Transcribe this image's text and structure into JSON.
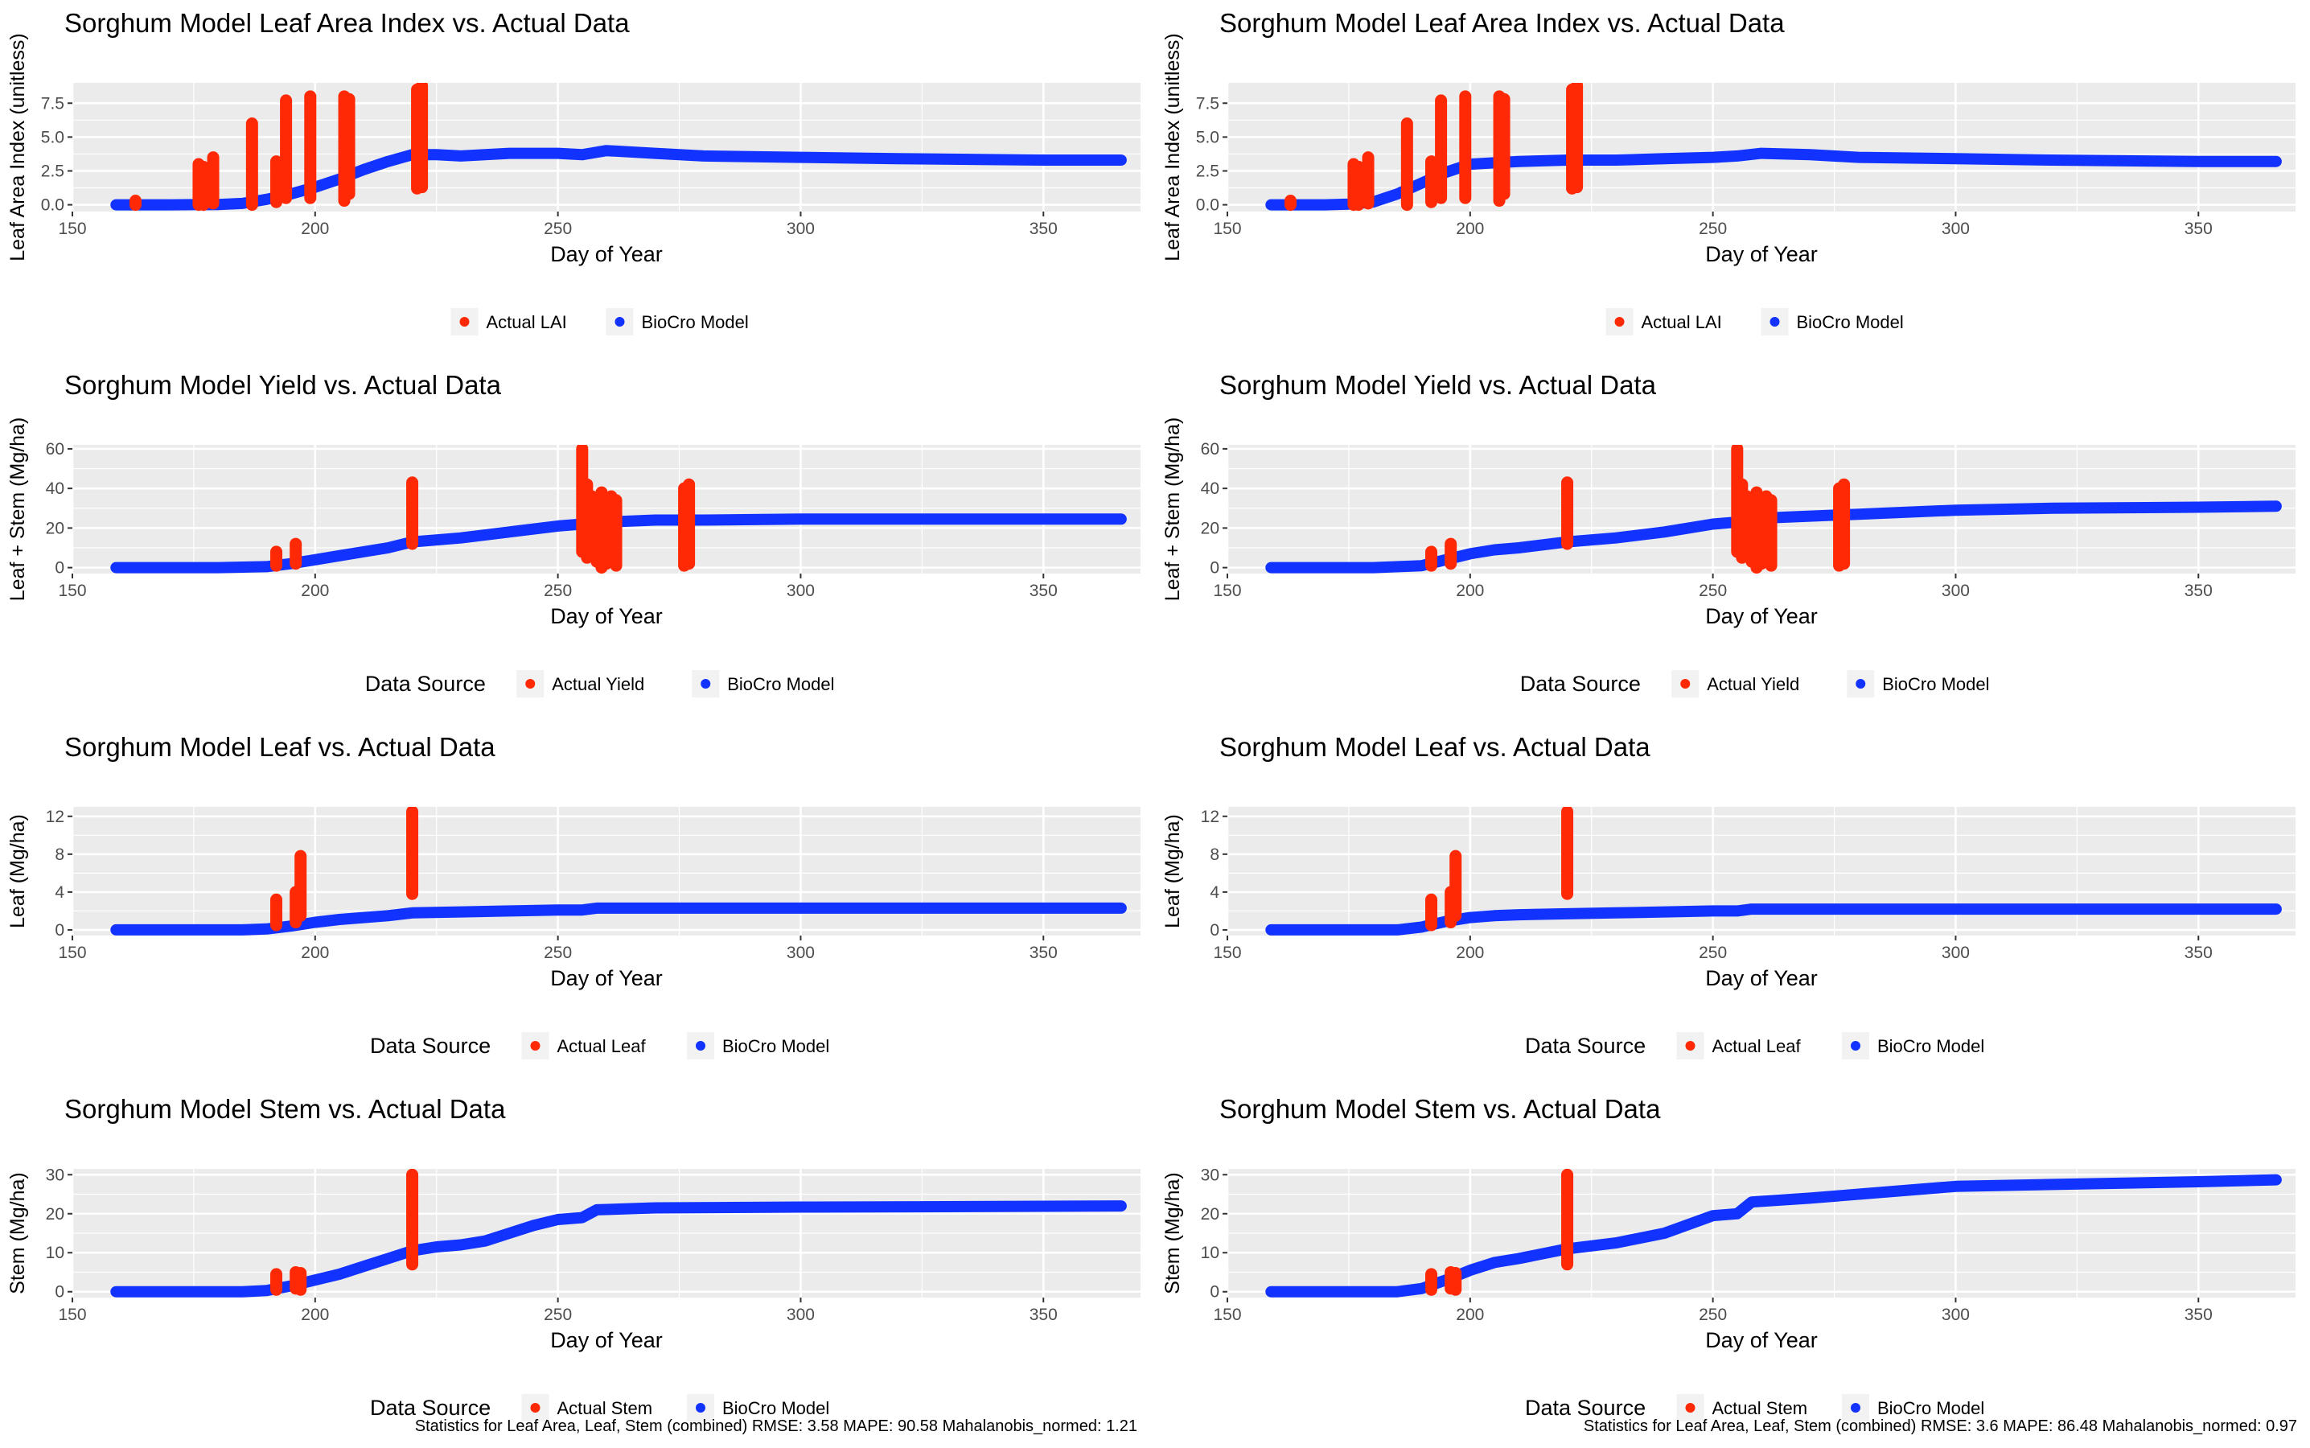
{
  "colors": {
    "actual": "#ff2a05",
    "model": "#1233ff",
    "panel_bg": "#ebebeb",
    "grid": "#ffffff",
    "axis_text": "#4d4d4d"
  },
  "chart_data": [
    {
      "type": "scatter",
      "id": "left-lai",
      "title": "Sorghum Model Leaf Area Index vs. Actual Data",
      "xlabel": "Day of Year",
      "ylabel": "Leaf Area Index (unitless)",
      "xlim": [
        150,
        370
      ],
      "ylim": [
        -0.5,
        9.0
      ],
      "xticks": [
        150,
        200,
        250,
        300,
        350
      ],
      "yticks": [
        0.0,
        2.5,
        5.0,
        7.5
      ],
      "ytick_labels": [
        "0.0",
        "2.5",
        "5.0",
        "7.5"
      ],
      "legend": {
        "position": "bottom",
        "title": "",
        "entries": [
          "Actual LAI",
          "BioCro Model"
        ]
      },
      "model_series": {
        "name": "BioCro Model",
        "x": [
          159,
          170,
          180,
          185,
          190,
          195,
          200,
          205,
          210,
          215,
          220,
          225,
          230,
          240,
          250,
          255,
          260,
          270,
          280,
          300,
          320,
          350,
          366
        ],
        "y": [
          0,
          0,
          0.02,
          0.1,
          0.4,
          0.8,
          1.3,
          1.9,
          2.6,
          3.2,
          3.7,
          3.7,
          3.6,
          3.8,
          3.8,
          3.7,
          4.0,
          3.8,
          3.6,
          3.5,
          3.4,
          3.3,
          3.3
        ]
      },
      "actual_series": {
        "name": "Actual LAI",
        "x": [
          163,
          176,
          177,
          179,
          187,
          192,
          194,
          199,
          206,
          207,
          221,
          222
        ],
        "ymin": [
          0.0,
          0.0,
          0.0,
          0.1,
          0.0,
          0.2,
          0.5,
          0.5,
          0.3,
          0.8,
          1.2,
          1.3
        ],
        "ymax": [
          0.3,
          3.0,
          2.8,
          3.5,
          6.0,
          3.2,
          7.7,
          8.0,
          8.0,
          7.8,
          8.5,
          8.8
        ]
      }
    },
    {
      "type": "scatter",
      "id": "right-lai",
      "title": "Sorghum Model Leaf Area Index vs. Actual Data",
      "xlabel": "Day of Year",
      "ylabel": "Leaf Area Index (unitless)",
      "xlim": [
        150,
        370
      ],
      "ylim": [
        -0.5,
        9.0
      ],
      "xticks": [
        150,
        200,
        250,
        300,
        350
      ],
      "yticks": [
        0.0,
        2.5,
        5.0,
        7.5
      ],
      "ytick_labels": [
        "0.0",
        "2.5",
        "5.0",
        "7.5"
      ],
      "legend": {
        "position": "bottom",
        "title": "",
        "entries": [
          "Actual LAI",
          "BioCro Model"
        ]
      },
      "model_series": {
        "name": "BioCro Model",
        "x": [
          159,
          170,
          175,
          180,
          185,
          190,
          195,
          200,
          205,
          210,
          220,
          230,
          240,
          250,
          255,
          260,
          270,
          280,
          300,
          320,
          350,
          366
        ],
        "y": [
          0,
          0,
          0.05,
          0.2,
          0.8,
          1.6,
          2.4,
          3.0,
          3.1,
          3.2,
          3.3,
          3.3,
          3.4,
          3.5,
          3.6,
          3.8,
          3.7,
          3.5,
          3.4,
          3.3,
          3.2,
          3.2
        ]
      },
      "actual_series": {
        "name": "Actual LAI",
        "x": [
          163,
          176,
          177,
          179,
          187,
          192,
          194,
          199,
          206,
          207,
          221,
          222
        ],
        "ymin": [
          0.0,
          0.0,
          0.0,
          0.1,
          0.0,
          0.2,
          0.5,
          0.5,
          0.3,
          0.8,
          1.2,
          1.3
        ],
        "ymax": [
          0.3,
          3.0,
          2.8,
          3.5,
          6.0,
          3.2,
          7.7,
          8.0,
          8.0,
          7.8,
          8.5,
          8.8
        ]
      }
    },
    {
      "type": "scatter",
      "id": "left-yield",
      "title": "Sorghum Model Yield vs. Actual Data",
      "xlabel": "Day of Year",
      "ylabel": "Leaf + Stem (Mg/ha)",
      "xlim": [
        150,
        370
      ],
      "ylim": [
        -3,
        62
      ],
      "xticks": [
        150,
        200,
        250,
        300,
        350
      ],
      "yticks": [
        0,
        20,
        40,
        60
      ],
      "ytick_labels": [
        "0",
        "20",
        "40",
        "60"
      ],
      "legend": {
        "position": "bottom",
        "title": "Data Source",
        "entries": [
          "Actual Yield",
          "BioCro Model"
        ]
      },
      "model_series": {
        "name": "BioCro Model",
        "x": [
          159,
          180,
          190,
          195,
          200,
          205,
          210,
          215,
          220,
          225,
          230,
          240,
          250,
          255,
          260,
          270,
          280,
          300,
          330,
          366
        ],
        "y": [
          0,
          0,
          0.5,
          2,
          4,
          6,
          8,
          10,
          13,
          14,
          15,
          18,
          21,
          22,
          23,
          24,
          24,
          24.5,
          24.5,
          24.5
        ]
      },
      "actual_series": {
        "name": "Actual Yield",
        "x": [
          192,
          196,
          220,
          255,
          256,
          257,
          258,
          259,
          260,
          261,
          262,
          276,
          277
        ],
        "ymin": [
          1,
          2,
          12,
          8,
          5,
          10,
          3,
          0,
          2,
          5,
          1,
          1,
          2
        ],
        "ymax": [
          8,
          12,
          43,
          60,
          42,
          36,
          33,
          38,
          35,
          36,
          34,
          40,
          42
        ]
      }
    },
    {
      "type": "scatter",
      "id": "right-yield",
      "title": "Sorghum Model Yield vs. Actual Data",
      "xlabel": "Day of Year",
      "ylabel": "Leaf + Stem (Mg/ha)",
      "xlim": [
        150,
        370
      ],
      "ylim": [
        -3,
        62
      ],
      "xticks": [
        150,
        200,
        250,
        300,
        350
      ],
      "yticks": [
        0,
        20,
        40,
        60
      ],
      "ytick_labels": [
        "0",
        "20",
        "40",
        "60"
      ],
      "legend": {
        "position": "bottom",
        "title": "Data Source",
        "entries": [
          "Actual Yield",
          "BioCro Model"
        ]
      },
      "model_series": {
        "name": "BioCro Model",
        "x": [
          159,
          180,
          190,
          195,
          200,
          205,
          210,
          220,
          230,
          240,
          250,
          255,
          260,
          270,
          280,
          300,
          320,
          350,
          366
        ],
        "y": [
          0,
          0,
          1,
          4,
          7,
          9,
          10,
          13,
          15,
          18,
          22,
          23,
          25,
          26,
          27,
          29,
          30,
          30.5,
          31
        ]
      },
      "actual_series": {
        "name": "Actual Yield",
        "x": [
          192,
          196,
          220,
          255,
          256,
          257,
          258,
          259,
          260,
          261,
          262,
          276,
          277
        ],
        "ymin": [
          1,
          2,
          12,
          8,
          5,
          10,
          3,
          0,
          2,
          5,
          1,
          1,
          2
        ],
        "ymax": [
          8,
          12,
          43,
          60,
          42,
          36,
          33,
          38,
          35,
          36,
          34,
          40,
          42
        ]
      }
    },
    {
      "type": "scatter",
      "id": "left-leaf",
      "title": "Sorghum Model Leaf vs. Actual Data",
      "xlabel": "Day of Year",
      "ylabel": "Leaf (Mg/ha)",
      "xlim": [
        150,
        370
      ],
      "ylim": [
        -0.6,
        13.0
      ],
      "xticks": [
        150,
        200,
        250,
        300,
        350
      ],
      "yticks": [
        0,
        4,
        8,
        12
      ],
      "ytick_labels": [
        "0",
        "4",
        "8",
        "12"
      ],
      "legend": {
        "position": "bottom",
        "title": "Data Source",
        "entries": [
          "Actual Leaf",
          "BioCro Model"
        ]
      },
      "model_series": {
        "name": "BioCro Model",
        "x": [
          159,
          185,
          190,
          195,
          200,
          205,
          210,
          215,
          220,
          230,
          240,
          250,
          255,
          258,
          270,
          300,
          330,
          366
        ],
        "y": [
          0,
          0,
          0.1,
          0.4,
          0.8,
          1.1,
          1.3,
          1.5,
          1.8,
          1.9,
          2.0,
          2.1,
          2.1,
          2.3,
          2.3,
          2.3,
          2.3,
          2.3
        ]
      },
      "actual_series": {
        "name": "Actual Leaf",
        "x": [
          192,
          196,
          197,
          220
        ],
        "ymin": [
          0.5,
          0.8,
          1.5,
          3.8
        ],
        "ymax": [
          3.2,
          4.0,
          7.8,
          12.5
        ]
      }
    },
    {
      "type": "scatter",
      "id": "right-leaf",
      "title": "Sorghum Model Leaf vs. Actual Data",
      "xlabel": "Day of Year",
      "ylabel": "Leaf (Mg/ha)",
      "xlim": [
        150,
        370
      ],
      "ylim": [
        -0.6,
        13.0
      ],
      "xticks": [
        150,
        200,
        250,
        300,
        350
      ],
      "yticks": [
        0,
        4,
        8,
        12
      ],
      "ytick_labels": [
        "0",
        "4",
        "8",
        "12"
      ],
      "legend": {
        "position": "bottom",
        "title": "Data Source",
        "entries": [
          "Actual Leaf",
          "BioCro Model"
        ]
      },
      "model_series": {
        "name": "BioCro Model",
        "x": [
          159,
          185,
          190,
          195,
          200,
          205,
          210,
          220,
          230,
          240,
          250,
          255,
          258,
          270,
          300,
          330,
          366
        ],
        "y": [
          0,
          0,
          0.3,
          0.9,
          1.3,
          1.5,
          1.6,
          1.7,
          1.8,
          1.9,
          2.0,
          2.0,
          2.2,
          2.2,
          2.2,
          2.2,
          2.2
        ]
      },
      "actual_series": {
        "name": "Actual Leaf",
        "x": [
          192,
          196,
          197,
          220
        ],
        "ymin": [
          0.5,
          0.8,
          1.5,
          3.8
        ],
        "ymax": [
          3.2,
          4.0,
          7.8,
          12.5
        ]
      }
    },
    {
      "type": "scatter",
      "id": "left-stem",
      "title": "Sorghum Model Stem vs. Actual Data",
      "xlabel": "Day of Year",
      "ylabel": "Stem (Mg/ha)",
      "xlim": [
        150,
        370
      ],
      "ylim": [
        -1.5,
        31.5
      ],
      "xticks": [
        150,
        200,
        250,
        300,
        350
      ],
      "yticks": [
        0,
        10,
        20,
        30
      ],
      "ytick_labels": [
        "0",
        "10",
        "20",
        "30"
      ],
      "legend": {
        "position": "bottom",
        "title": "Data Source",
        "entries": [
          "Actual Stem",
          "BioCro Model"
        ]
      },
      "model_series": {
        "name": "BioCro Model",
        "x": [
          159,
          185,
          190,
          195,
          200,
          205,
          210,
          215,
          220,
          225,
          230,
          235,
          240,
          245,
          250,
          255,
          258,
          270,
          300,
          330,
          366
        ],
        "y": [
          0,
          0,
          0.3,
          1.5,
          3,
          4.5,
          6.5,
          8.5,
          10.5,
          11.5,
          12,
          13,
          15,
          17,
          18.5,
          19,
          21,
          21.5,
          21.7,
          21.8,
          22
        ]
      },
      "actual_series": {
        "name": "Actual Stem",
        "x": [
          192,
          196,
          197,
          220
        ],
        "ymin": [
          0.5,
          0.8,
          0.5,
          7
        ],
        "ymax": [
          4.5,
          5.0,
          4.8,
          30
        ]
      }
    },
    {
      "type": "scatter",
      "id": "right-stem",
      "title": "Sorghum Model Stem vs. Actual Data",
      "xlabel": "Day of Year",
      "ylabel": "Stem (Mg/ha)",
      "xlim": [
        150,
        370
      ],
      "ylim": [
        -1.5,
        31.5
      ],
      "xticks": [
        150,
        200,
        250,
        300,
        350
      ],
      "yticks": [
        0,
        10,
        20,
        30
      ],
      "ytick_labels": [
        "0",
        "10",
        "20",
        "30"
      ],
      "legend": {
        "position": "bottom",
        "title": "Data Source",
        "entries": [
          "Actual Stem",
          "BioCro Model"
        ]
      },
      "model_series": {
        "name": "BioCro Model",
        "x": [
          159,
          185,
          190,
          195,
          200,
          205,
          210,
          220,
          230,
          240,
          250,
          255,
          258,
          270,
          280,
          300,
          320,
          350,
          366
        ],
        "y": [
          0,
          0,
          0.8,
          3,
          5.5,
          7.5,
          8.5,
          11,
          12.5,
          15,
          19.5,
          20,
          23,
          24,
          25,
          27,
          27.5,
          28.2,
          28.7
        ]
      },
      "actual_series": {
        "name": "Actual Stem",
        "x": [
          192,
          196,
          197,
          220
        ],
        "ymin": [
          0.5,
          0.8,
          0.5,
          7
        ],
        "ymax": [
          4.5,
          5.0,
          4.8,
          30
        ]
      }
    }
  ],
  "stats": {
    "left": "Statistics for Leaf Area, Leaf, Stem (combined) RMSE: 3.58  MAPE: 90.58  Mahalanobis_normed: 1.21",
    "right": "Statistics for Leaf Area, Leaf, Stem (combined) RMSE: 3.6  MAPE: 86.48  Mahalanobis_normed: 0.97"
  }
}
